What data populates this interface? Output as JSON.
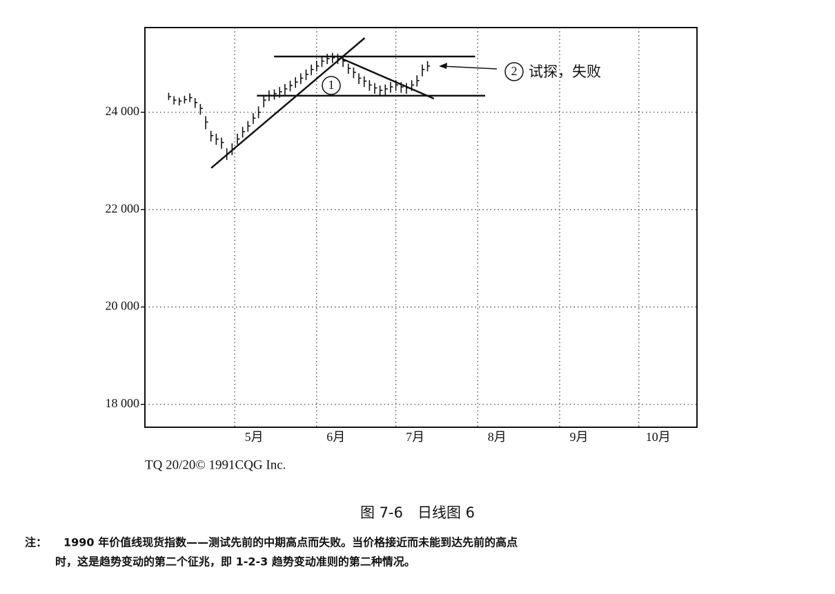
{
  "chart_data": {
    "type": "ohlc",
    "x": [
      5,
      7,
      9,
      11,
      13,
      15,
      17,
      19,
      21,
      23,
      25,
      27,
      29,
      31,
      33,
      35,
      37,
      39,
      41,
      43,
      45,
      47,
      49,
      51,
      53,
      55,
      57,
      59,
      61,
      63,
      65,
      67,
      69,
      71,
      73,
      75,
      77,
      79,
      81,
      83,
      85,
      87,
      89,
      91,
      93,
      95,
      97,
      99,
      101,
      103
    ],
    "high": [
      24400,
      24330,
      24300,
      24340,
      24390,
      24290,
      24170,
      23920,
      23620,
      23560,
      23480,
      23260,
      23360,
      23560,
      23700,
      23820,
      23980,
      24120,
      24360,
      24450,
      24470,
      24520,
      24580,
      24650,
      24720,
      24800,
      24880,
      24980,
      25060,
      25160,
      25200,
      25220,
      25200,
      25150,
      25000,
      24920,
      24800,
      24740,
      24660,
      24600,
      24550,
      24570,
      24620,
      24660,
      24620,
      24600,
      24660,
      24760,
      24980,
      25050
    ],
    "low": [
      24250,
      24160,
      24140,
      24180,
      24210,
      24090,
      23950,
      23650,
      23400,
      23330,
      23250,
      23020,
      23120,
      23340,
      23480,
      23600,
      23760,
      23880,
      24100,
      24230,
      24260,
      24300,
      24360,
      24430,
      24500,
      24580,
      24660,
      24760,
      24840,
      24930,
      24990,
      25010,
      24990,
      24930,
      24790,
      24700,
      24580,
      24520,
      24440,
      24380,
      24340,
      24360,
      24400,
      24440,
      24400,
      24380,
      24440,
      24530,
      24740,
      24840
    ],
    "close": [
      24320,
      24250,
      24230,
      24260,
      24300,
      24200,
      24080,
      23800,
      23520,
      23450,
      23380,
      23150,
      23250,
      23450,
      23600,
      23720,
      23880,
      24000,
      24250,
      24350,
      24380,
      24420,
      24480,
      24550,
      24620,
      24700,
      24780,
      24880,
      24950,
      25050,
      25100,
      25120,
      25100,
      25050,
      24900,
      24820,
      24700,
      24640,
      24560,
      24500,
      24450,
      24480,
      24520,
      24560,
      24520,
      24500,
      24560,
      24650,
      24880,
      24950
    ],
    "color": "#111111",
    "xlim": [
      -4,
      205
    ],
    "xticks": [
      {
        "value": 30,
        "label": "5月"
      },
      {
        "value": 61,
        "label": "6月"
      },
      {
        "value": 91,
        "label": "7月"
      },
      {
        "value": 122,
        "label": "8月"
      },
      {
        "value": 153,
        "label": "9月"
      },
      {
        "value": 183,
        "label": "10月"
      }
    ],
    "ylim": [
      17530,
      25740
    ],
    "yticks": [
      {
        "value": 18000,
        "label": "18 000"
      },
      {
        "value": 20000,
        "label": "20 000"
      },
      {
        "value": 22000,
        "label": "22 000"
      },
      {
        "value": 24000,
        "label": "24 000"
      }
    ],
    "grid": true,
    "trendlines": [
      {
        "x": [
          21.1,
          79.2
        ],
        "y": [
          22855,
          25526
        ]
      },
      {
        "x": [
          44.9,
          121
        ],
        "y": [
          25145,
          25145
        ]
      },
      {
        "x": [
          38.4,
          124.8
        ],
        "y": [
          24340,
          24340
        ]
      },
      {
        "x": [
          70.6,
          105.4
        ],
        "y": [
          25100,
          24280
        ]
      }
    ],
    "annotations": [
      {
        "marker": "1"
      },
      {
        "marker": "2",
        "text": "试探，失败"
      }
    ],
    "source": "TQ 20/20© 1991CQG Inc.",
    "caption": "图 7-6　日线图 6",
    "note_label": "注：",
    "note_lines": [
      "1990 年价值线现货指数——测试先前的中期高点而失败。当价格接近而未能到达先前的高点",
      "时，这是趋势变动的第二个征兆，即 1-2-3 趋势变动准则的第二种情况。"
    ]
  }
}
